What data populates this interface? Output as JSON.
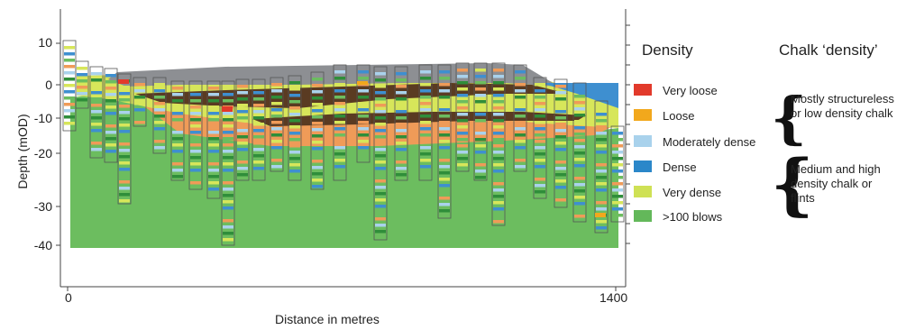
{
  "yaxis": {
    "label": "Depth (mOD)",
    "ticks": [
      "10",
      "0",
      "-10",
      "-20",
      "-30",
      "-40"
    ]
  },
  "xaxis": {
    "label": "Distance in metres",
    "ticks": [
      "0",
      "1400"
    ]
  },
  "legend": {
    "title": "Density",
    "items": [
      {
        "label": "Very loose",
        "color": "#e23a2b"
      },
      {
        "label": "Loose",
        "color": "#f2a81c"
      },
      {
        "label": "Moderately dense",
        "color": "#a9d2ec"
      },
      {
        "label": "Dense",
        "color": "#2b87c9"
      },
      {
        "label": "Very dense",
        "color": "#cfe155"
      },
      {
        "label": ">100 blows",
        "color": "#63b85a"
      }
    ]
  },
  "chalk": {
    "title": "Chalk ‘density’",
    "group1": "Mostly structureless or low density chalk",
    "group2": "Medium and high density chalk or flints"
  },
  "colors": {
    "green": "#6cbd5f",
    "yellow": "#d7e65a",
    "orange": "#ef9b58",
    "brown": "#5a3b22",
    "grey": "#8d8f93",
    "blue": "#3e8fd0",
    "dark_green": "#2f8e3a"
  }
}
